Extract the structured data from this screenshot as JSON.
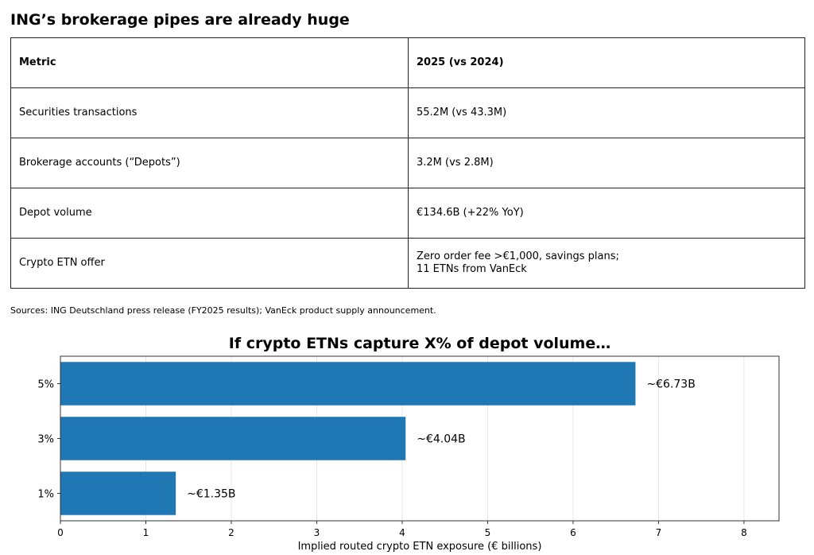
{
  "table": {
    "title": "ING’s brokerage pipes are already huge",
    "headers": [
      "Metric",
      "2025 (vs 2024)"
    ],
    "rows": [
      [
        "Securities transactions",
        "55.2M (vs 43.3M)"
      ],
      [
        "Brokerage accounts (“Depots”)",
        "3.2M (vs 2.8M)"
      ],
      [
        "Depot volume",
        "€134.6B (+22% YoY)"
      ],
      [
        "Crypto ETN offer",
        "Zero order fee >€1,000, savings plans;\n11 ETNs from VanEck"
      ]
    ],
    "sources": "Sources: ING Deutschland press release (FY2025 results); VanEck product supply announcement."
  },
  "chart_data": {
    "type": "bar",
    "orientation": "horizontal",
    "title": "If crypto ETNs capture X% of depot volume…",
    "xlabel": "Implied routed crypto ETN exposure (€ billions)",
    "ylabel": "",
    "categories": [
      "5%",
      "3%",
      "1%"
    ],
    "values": [
      6.73,
      4.04,
      1.35
    ],
    "data_labels": [
      "~€6.73B",
      "~€4.04B",
      "~€1.35B"
    ],
    "xlim": [
      0,
      8.41
    ],
    "xticks": [
      "0",
      "1",
      "2",
      "3",
      "4",
      "5",
      "6",
      "7",
      "8"
    ],
    "grid": "vertical",
    "bar_color": "#1f77b4"
  }
}
